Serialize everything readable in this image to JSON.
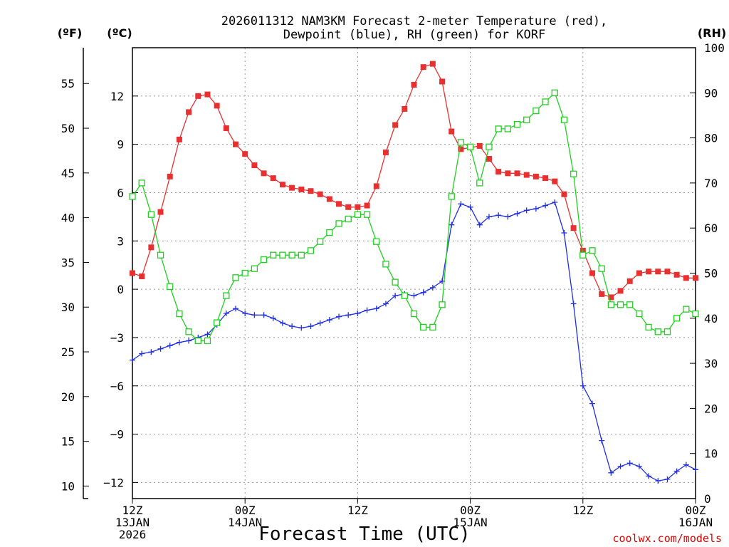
{
  "chart_data": {
    "type": "line",
    "title_lines": [
      "2026011312 NAM3KM Forecast 2-meter Temperature (red),",
      "Dewpoint (blue), RH (green) for KORF"
    ],
    "xlabel": "Forecast Time (UTC)",
    "credit": "coolwx.com/models",
    "y_left_f": {
      "unit_label": "(ºF)",
      "ticks": [
        "55",
        "50",
        "45",
        "40",
        "35",
        "30",
        "25",
        "20",
        "15",
        "10"
      ],
      "tick_values": [
        55,
        50,
        45,
        40,
        35,
        30,
        25,
        20,
        15,
        10
      ]
    },
    "y_left_c": {
      "unit_label": "(ºC)",
      "range": [
        -13,
        15
      ],
      "ticks": [
        "12",
        "9",
        "6",
        "3",
        "0",
        "−3",
        "−6",
        "−9",
        "−12"
      ],
      "tick_values": [
        12,
        9,
        6,
        3,
        0,
        -3,
        -6,
        -9,
        -12
      ]
    },
    "y_right_rh": {
      "unit_label": "(RH)",
      "range": [
        0,
        100
      ],
      "ticks": [
        "100",
        "90",
        "80",
        "70",
        "60",
        "50",
        "40",
        "30",
        "20",
        "10",
        "0"
      ],
      "tick_values": [
        100,
        90,
        80,
        70,
        60,
        50,
        40,
        30,
        20,
        10,
        0
      ]
    },
    "x_range_hours": [
      0,
      60
    ],
    "x_ticks": [
      {
        "hour": 0,
        "lines": [
          "12Z",
          "13JAN",
          "2026"
        ]
      },
      {
        "hour": 12,
        "lines": [
          "00Z",
          "14JAN"
        ]
      },
      {
        "hour": 24,
        "lines": [
          "12Z"
        ]
      },
      {
        "hour": 36,
        "lines": [
          "00Z",
          "15JAN"
        ]
      },
      {
        "hour": 48,
        "lines": [
          "12Z"
        ]
      },
      {
        "hour": 60,
        "lines": [
          "00Z",
          "16JAN"
        ]
      }
    ],
    "series": [
      {
        "name": "2-meter Temperature",
        "axis": "c",
        "color": "#e83030",
        "marker": "filled-square",
        "x": [
          0,
          1,
          2,
          3,
          4,
          5,
          6,
          7,
          8,
          9,
          10,
          11,
          12,
          13,
          14,
          15,
          16,
          17,
          18,
          19,
          20,
          21,
          22,
          23,
          24,
          25,
          26,
          27,
          28,
          29,
          30,
          31,
          32,
          33,
          34,
          35,
          36,
          37,
          38,
          39,
          40,
          41,
          42,
          43,
          44,
          45,
          46,
          47,
          48,
          49,
          50,
          51,
          52,
          53,
          54,
          55,
          56,
          57,
          58,
          59,
          60
        ],
        "values": [
          1.0,
          0.8,
          2.6,
          4.8,
          7.0,
          9.3,
          11.0,
          12.0,
          12.1,
          11.4,
          10.0,
          9.0,
          8.4,
          7.7,
          7.2,
          6.9,
          6.5,
          6.3,
          6.2,
          6.1,
          5.9,
          5.6,
          5.3,
          5.1,
          5.1,
          5.2,
          6.4,
          8.5,
          10.2,
          11.2,
          12.7,
          13.8,
          14.0,
          12.9,
          9.8,
          8.7,
          8.8,
          8.9,
          8.1,
          7.3,
          7.2,
          7.2,
          7.1,
          7.0,
          6.9,
          6.7,
          5.9,
          3.8,
          2.4,
          1.0,
          -0.3,
          -0.5,
          -0.1,
          0.5,
          1.0,
          1.1,
          1.1,
          1.1,
          0.9,
          0.7,
          0.7
        ]
      },
      {
        "name": "Dewpoint",
        "axis": "c",
        "color": "#2030e0",
        "marker": "plus",
        "x": [
          0,
          1,
          2,
          3,
          4,
          5,
          6,
          7,
          8,
          9,
          10,
          11,
          12,
          13,
          14,
          15,
          16,
          17,
          18,
          19,
          20,
          21,
          22,
          23,
          24,
          25,
          26,
          27,
          28,
          29,
          30,
          31,
          32,
          33,
          34,
          35,
          36,
          37,
          38,
          39,
          40,
          41,
          42,
          43,
          44,
          45,
          46,
          47,
          48,
          49,
          50,
          51,
          52,
          53,
          54,
          55,
          56,
          57,
          58,
          59,
          60
        ],
        "values": [
          -4.4,
          -4.0,
          -3.9,
          -3.7,
          -3.5,
          -3.3,
          -3.2,
          -3.0,
          -2.8,
          -2.2,
          -1.5,
          -1.2,
          -1.5,
          -1.6,
          -1.6,
          -1.8,
          -2.1,
          -2.3,
          -2.4,
          -2.3,
          -2.1,
          -1.9,
          -1.7,
          -1.6,
          -1.5,
          -1.3,
          -1.2,
          -0.9,
          -0.4,
          -0.3,
          -0.4,
          -0.2,
          0.1,
          0.5,
          4.0,
          5.3,
          5.1,
          4.0,
          4.5,
          4.6,
          4.5,
          4.7,
          4.9,
          5.0,
          5.2,
          5.4,
          3.5,
          -0.9,
          -6.0,
          -7.1,
          -9.4,
          -11.4,
          -11.0,
          -10.8,
          -11.0,
          -11.6,
          -11.9,
          -11.8,
          -11.3,
          -10.9,
          -11.2
        ]
      },
      {
        "name": "RH",
        "axis": "rh",
        "color": "#20d020",
        "marker": "open-square",
        "x": [
          0,
          1,
          2,
          3,
          4,
          5,
          6,
          7,
          8,
          9,
          10,
          11,
          12,
          13,
          14,
          15,
          16,
          17,
          18,
          19,
          20,
          21,
          22,
          23,
          24,
          25,
          26,
          27,
          28,
          29,
          30,
          31,
          32,
          33,
          34,
          35,
          36,
          37,
          38,
          39,
          40,
          41,
          42,
          43,
          44,
          45,
          46,
          47,
          48,
          49,
          50,
          51,
          52,
          53,
          54,
          55,
          56,
          57,
          58,
          59,
          60
        ],
        "values": [
          67,
          70,
          63,
          54,
          47,
          41,
          37,
          35,
          35,
          39,
          45,
          49,
          50,
          51,
          53,
          54,
          54,
          54,
          54,
          55,
          57,
          59,
          61,
          62,
          63,
          63,
          57,
          52,
          48,
          45,
          41,
          38,
          38,
          43,
          67,
          79,
          78,
          70,
          78,
          82,
          82,
          83,
          84,
          86,
          88,
          90,
          84,
          72,
          54,
          55,
          51,
          43,
          43,
          43,
          41,
          38,
          37,
          37,
          40,
          42,
          41
        ]
      }
    ]
  }
}
